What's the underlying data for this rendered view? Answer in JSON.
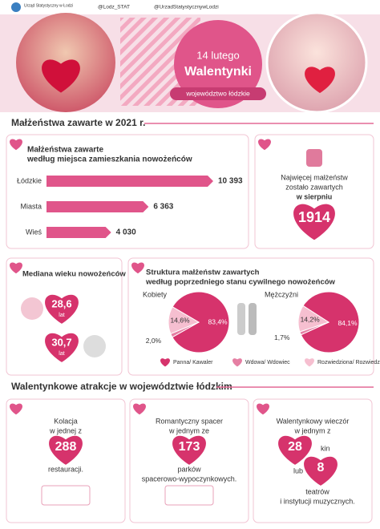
{
  "header": {
    "org": "Urząd Statystyczny w Łodzi",
    "twitter": "@Lodz_STAT",
    "facebook": "@UrzadStatystycznywLodzi",
    "date": "14 lutego",
    "title": "Walentynki",
    "region": "województwo łódzkie"
  },
  "section1": {
    "title": "Małżeństwa zawarte w 2021 r.",
    "chart": {
      "title": [
        "Małżeństwa zawarte",
        "według miejsca zamieszkania nowożeńców"
      ],
      "categories": [
        "Łódzkie",
        "Miasta",
        "Wieś"
      ],
      "values": [
        10393,
        6363,
        4030
      ],
      "value_labels": [
        "10 393",
        "6 363",
        "4 030"
      ],
      "color": "#e0558a"
    },
    "august": {
      "lines": [
        "Najwięcej małżeństw",
        "zostało zawartych",
        "w sierpniu"
      ],
      "value": 1914
    }
  },
  "section2": {
    "median": {
      "title": "Mediana wieku nowożeńców",
      "bride": {
        "value": 28.6,
        "label": "28,6",
        "unit": "lat"
      },
      "groom": {
        "value": 30.7,
        "label": "30,7",
        "unit": "lat"
      }
    },
    "structure": {
      "title": [
        "Struktura małżeństw zawartych",
        "według poprzedniego stanu cywilnego nowożeńców"
      ],
      "legend": [
        "Panna/ Kawaler",
        "Wdowa/ Wdowiec",
        "Rozwiedziona/ Rozwiedziony"
      ],
      "colors": [
        "#d6336c",
        "#e57fa3",
        "#f6bfd0"
      ],
      "women": {
        "label": "Kobiety",
        "values": [
          83.4,
          2.0,
          14.6
        ],
        "value_labels": [
          "83,4%",
          "2,0%",
          "14,6%"
        ]
      },
      "men": {
        "label": "Mężczyźni",
        "values": [
          84.1,
          1.7,
          14.2
        ],
        "value_labels": [
          "84,1%",
          "1,7%",
          "14,2%"
        ]
      }
    }
  },
  "section3": {
    "title": "Walentynkowe atrakcje w województwie łódzkim",
    "cards": [
      {
        "top": [
          "Kolacja",
          "w jednej z"
        ],
        "value": 288,
        "bottom": [
          "restauracji."
        ]
      },
      {
        "top": [
          "Romantyczny spacer",
          "w jednym ze"
        ],
        "value": 173,
        "bottom": [
          "parków",
          "spacerowo-wypoczynkowych."
        ]
      },
      {
        "top": [
          "Walentynkowy wieczór",
          "w jednym z"
        ],
        "value": 28,
        "bottom": [
          "kin"
        ],
        "joiner": "lub",
        "value2": 8,
        "bottom2": [
          "teatrów",
          "i instytucji muzycznych."
        ]
      }
    ]
  }
}
